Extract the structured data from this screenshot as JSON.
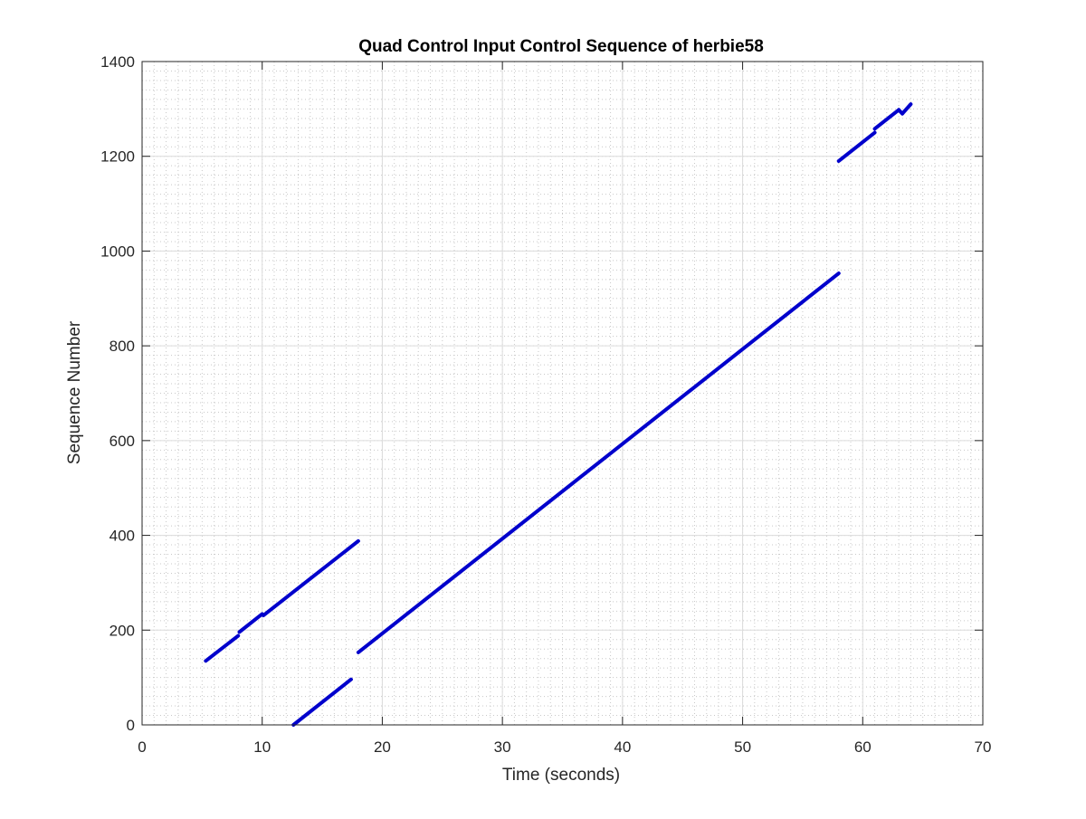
{
  "chart_data": {
    "type": "line",
    "title": "Quad Control Input Control Sequence of herbie58",
    "xlabel": "Time (seconds)",
    "ylabel": "Sequence Number",
    "xlim": [
      0,
      70
    ],
    "ylim": [
      0,
      1400
    ],
    "xticks": [
      0,
      10,
      20,
      30,
      40,
      50,
      60,
      70
    ],
    "yticks": [
      0,
      200,
      400,
      600,
      800,
      1000,
      1200,
      1400
    ],
    "xtick_labels": [
      "0",
      "10",
      "20",
      "30",
      "40",
      "50",
      "60",
      "70"
    ],
    "ytick_labels": [
      "0",
      "200",
      "400",
      "600",
      "800",
      "1000",
      "1200",
      "1400"
    ],
    "grid": true,
    "minor_grid": true,
    "line_color": "#0000CC",
    "segments": [
      {
        "x": [
          5.3,
          8.0
        ],
        "y": [
          135,
          188
        ]
      },
      {
        "x": [
          8.1,
          10.0
        ],
        "y": [
          196,
          234
        ]
      },
      {
        "x": [
          10.1,
          18.0
        ],
        "y": [
          231,
          388
        ]
      },
      {
        "x": [
          12.6,
          17.4
        ],
        "y": [
          0,
          96
        ]
      },
      {
        "x": [
          18.0,
          58.0
        ],
        "y": [
          153,
          953
        ]
      },
      {
        "x": [
          58.0,
          61.0
        ],
        "y": [
          1190,
          1250
        ]
      },
      {
        "x": [
          61.0,
          63.0
        ],
        "y": [
          1258,
          1298
        ]
      },
      {
        "x": [
          63.0,
          63.3
        ],
        "y": [
          1298,
          1290
        ]
      },
      {
        "x": [
          63.3,
          64.0
        ],
        "y": [
          1290,
          1310
        ]
      }
    ]
  }
}
